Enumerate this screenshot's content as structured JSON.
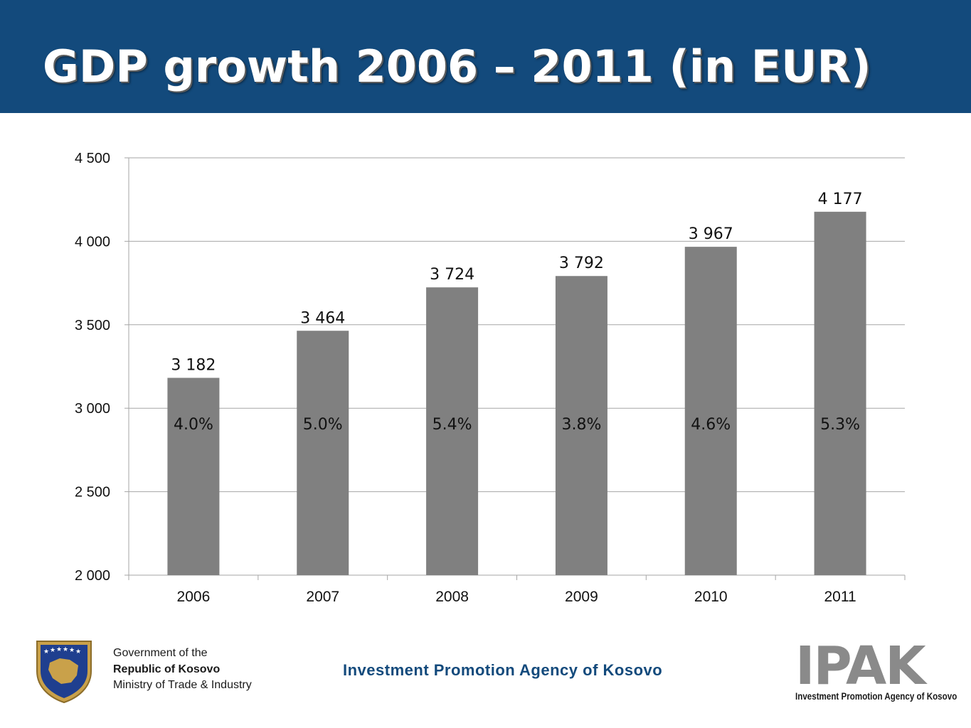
{
  "slide": {
    "title": "GDP growth 2006 – 2011 (in EUR)"
  },
  "footer": {
    "gov_line1": "Government of the",
    "gov_line2": "Republic of Kosovo",
    "gov_line3": "Ministry of Trade & Industry",
    "agency": "Investment Promotion Agency of Kosovo",
    "logo_letters": "IPAK",
    "logo_caption": "Investment Promotion Agency of Kosovo"
  },
  "colors": {
    "header": "#134a7c",
    "bar": "#808080",
    "grid": "#a6a6a6",
    "agency_text": "#134a7c"
  },
  "chart_data": {
    "type": "bar",
    "categories": [
      "2006",
      "2007",
      "2008",
      "2009",
      "2010",
      "2011"
    ],
    "values": [
      3182,
      3464,
      3724,
      3792,
      3967,
      4177
    ],
    "value_labels": [
      "3 182",
      "3 464",
      "3 724",
      "3 792",
      "3 967",
      "4 177"
    ],
    "growth_labels": [
      "4.0%",
      "5.0%",
      "5.4%",
      "3.8%",
      "4.6%",
      "5.3%"
    ],
    "ylim": [
      2000,
      4500
    ],
    "yticks": [
      2000,
      2500,
      3000,
      3500,
      4000,
      4500
    ],
    "ytick_labels": [
      "2 000",
      "2 500",
      "3 000",
      "3 500",
      "4 000",
      "4 500"
    ],
    "grid": true,
    "legend": "none",
    "title": "",
    "xlabel": "",
    "ylabel": ""
  }
}
